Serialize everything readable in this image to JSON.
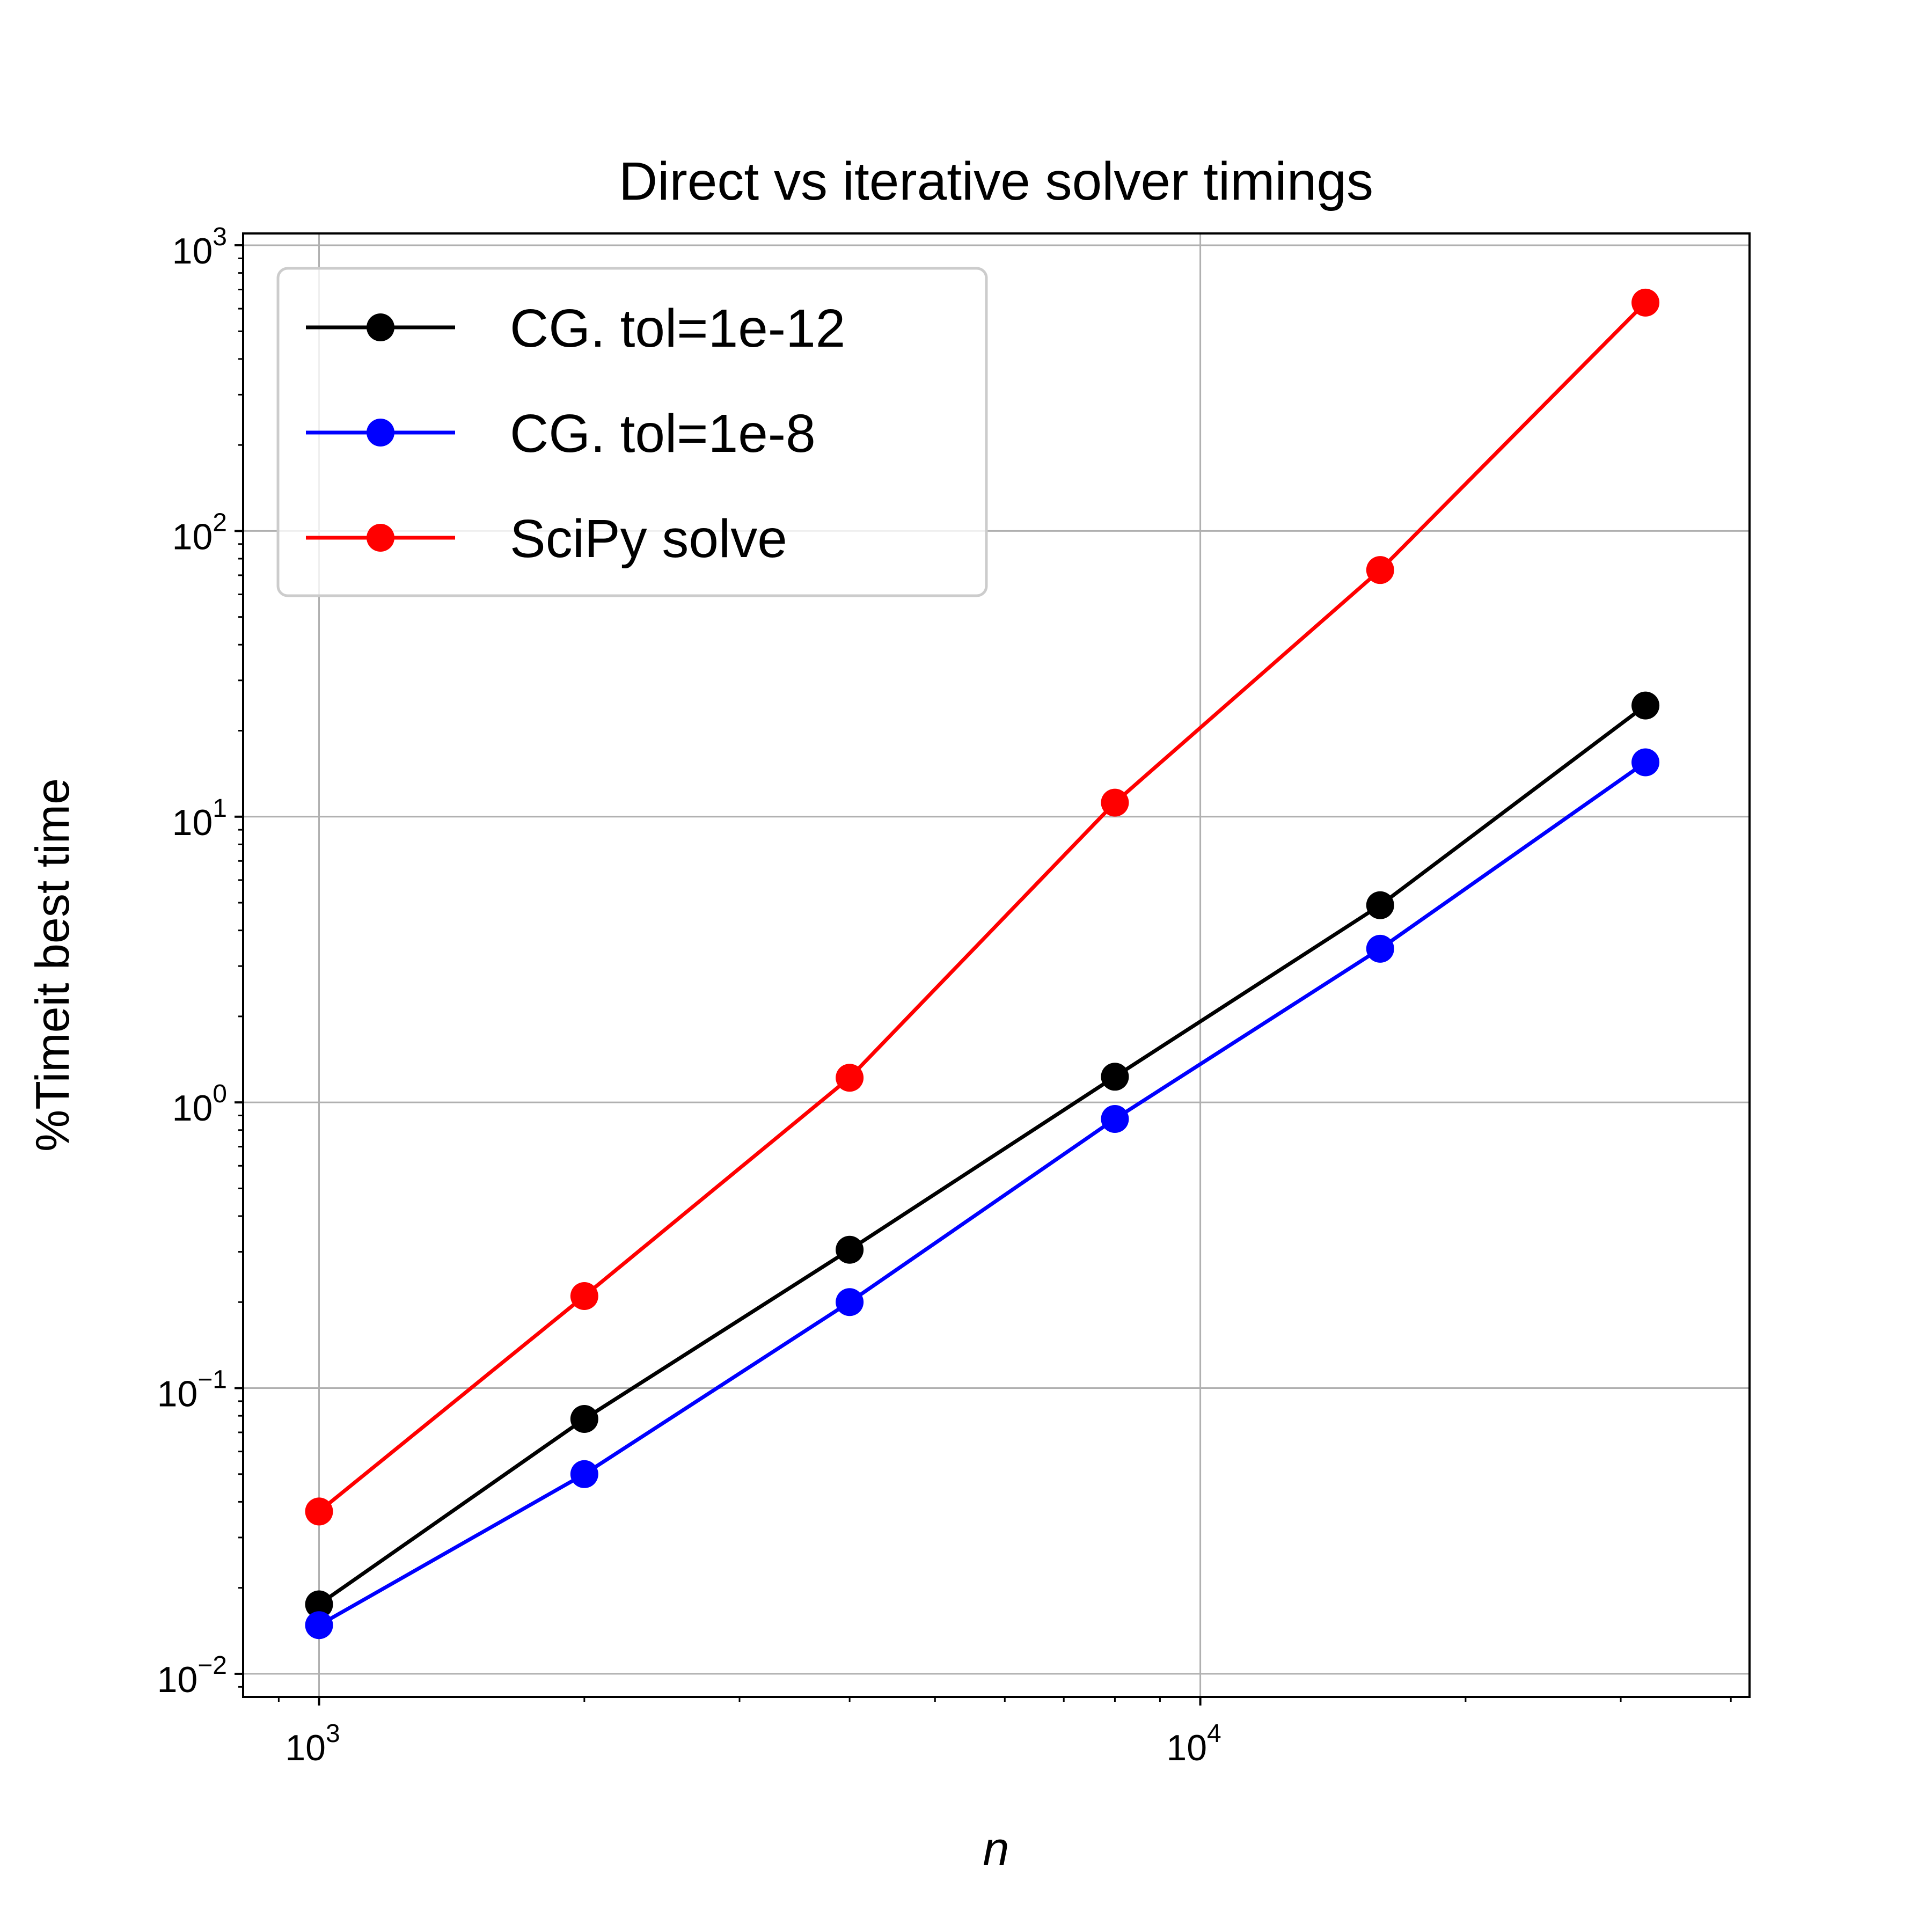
{
  "chart_data": {
    "type": "line",
    "title": "Direct vs iterative solver timings",
    "xlabel": "n",
    "ylabel": "%Timeit best time",
    "xscale": "log",
    "yscale": "log",
    "xlim": [
      820,
      42000
    ],
    "ylim": [
      0.0083,
      1100
    ],
    "grid": true,
    "legend_position": "top-left",
    "x": [
      1000,
      2000,
      4000,
      8000,
      16000,
      32000
    ],
    "series": [
      {
        "name": "CG. tol=1e-12",
        "color": "#000000",
        "values": [
          0.0175,
          0.078,
          0.305,
          1.23,
          4.9,
          24.5
        ]
      },
      {
        "name": "CG. tol=1e-8",
        "color": "#0000ff",
        "values": [
          0.0148,
          0.05,
          0.2,
          0.875,
          3.45,
          15.5
        ]
      },
      {
        "name": "SciPy solve",
        "color": "#ff0000",
        "values": [
          0.037,
          0.21,
          1.22,
          11.2,
          73,
          630
        ]
      }
    ],
    "x_ticks": [
      {
        "value": 1000,
        "base": "10",
        "exp": "3"
      },
      {
        "value": 10000,
        "base": "10",
        "exp": "4"
      }
    ],
    "y_ticks": [
      {
        "value": 0.01,
        "base": "10",
        "exp": "−2"
      },
      {
        "value": 0.1,
        "base": "10",
        "exp": "−1"
      },
      {
        "value": 1,
        "base": "10",
        "exp": "0"
      },
      {
        "value": 10,
        "base": "10",
        "exp": "1"
      },
      {
        "value": 100,
        "base": "10",
        "exp": "2"
      },
      {
        "value": 1000,
        "base": "10",
        "exp": "3"
      }
    ]
  }
}
